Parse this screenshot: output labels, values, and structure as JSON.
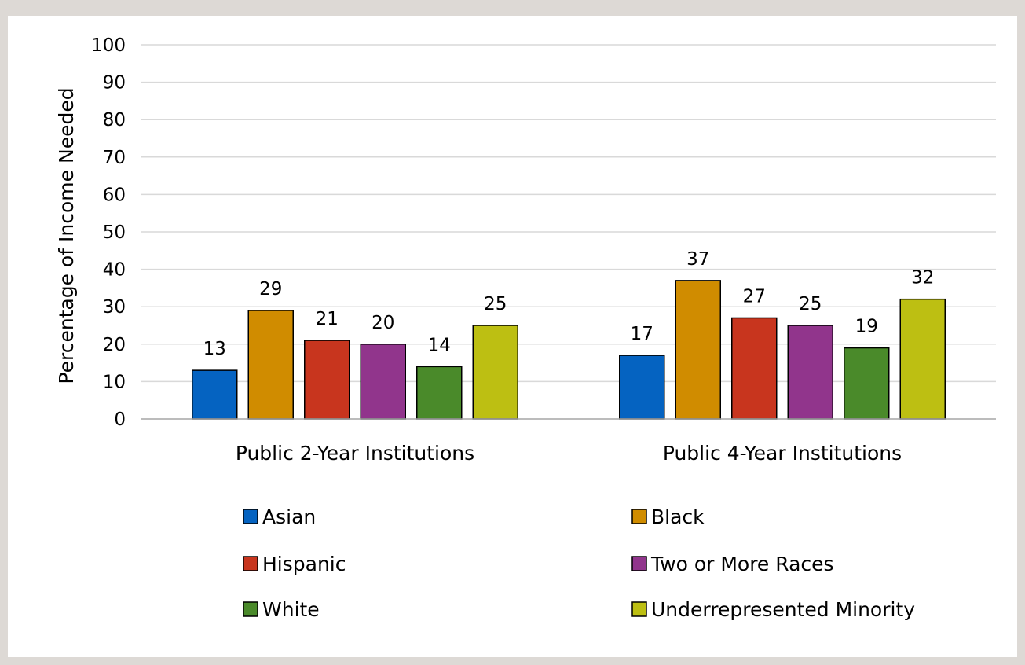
{
  "chart_data": {
    "type": "bar",
    "title": "",
    "xlabel": "",
    "ylabel": "Percentage of Income Needed",
    "ylim": [
      0,
      100
    ],
    "yticks": [
      0,
      10,
      20,
      30,
      40,
      50,
      60,
      70,
      80,
      90,
      100
    ],
    "grid": true,
    "legend_position": "bottom",
    "categories": [
      "Public 2-Year Institutions",
      "Public 4-Year Institutions"
    ],
    "series": [
      {
        "name": "Asian",
        "color": "#0563c1",
        "values": [
          13,
          17
        ]
      },
      {
        "name": "Black",
        "color": "#d08c00",
        "values": [
          29,
          37
        ]
      },
      {
        "name": "Hispanic",
        "color": "#c8351e",
        "values": [
          21,
          27
        ]
      },
      {
        "name": "Two or More Races",
        "color": "#91358c",
        "values": [
          20,
          25
        ]
      },
      {
        "name": "White",
        "color": "#4a8a2a",
        "values": [
          14,
          19
        ]
      },
      {
        "name": "Underrepresented Minority",
        "color": "#bdbf12",
        "values": [
          25,
          32
        ]
      }
    ]
  }
}
